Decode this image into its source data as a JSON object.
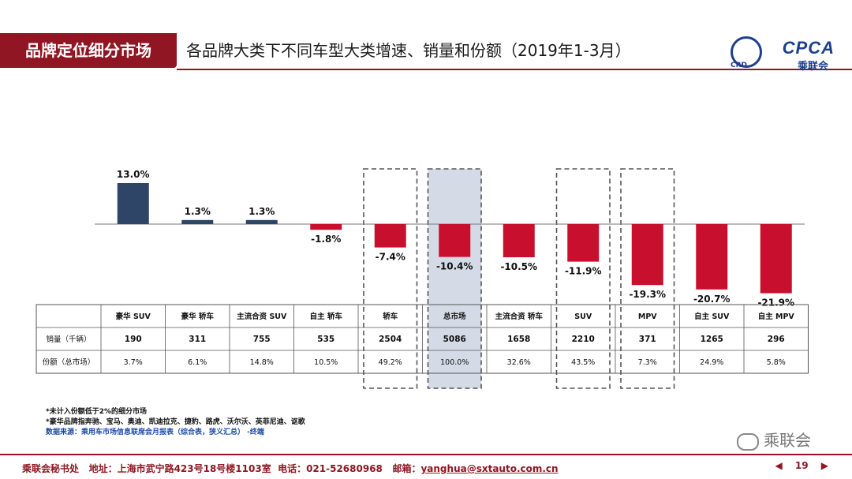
{
  "header": {
    "tag": "品牌定位细分市场",
    "title": "各品牌大类下不同车型大类增速、销量和份额（2019年1-3月）",
    "logo_text": "CPCA",
    "logo_subtext": "乘联会",
    "logo_small": "CRD"
  },
  "chart_data": {
    "type": "bar",
    "title": "各品牌大类下不同车型大类增速、销量和份额（2019年1-3月）",
    "categories": [
      "豪华 SUV",
      "豪华 轿车",
      "主流合资 SUV",
      "自主 轿车",
      "轿车",
      "总市场",
      "主流合资 轿车",
      "SUV",
      "MPV",
      "自主 SUV",
      "自主 MPV"
    ],
    "values": [
      13.0,
      1.3,
      1.3,
      -1.8,
      -7.4,
      -10.4,
      -10.5,
      -11.9,
      -19.3,
      -20.7,
      -21.9
    ],
    "value_labels": [
      "13.0%",
      "1.3%",
      "1.3%",
      "-1.8%",
      "-7.4%",
      "-10.4%",
      "-10.5%",
      "-11.9%",
      "-19.3%",
      "-20.7%",
      "-21.9%"
    ],
    "highlighted": [
      "轿车",
      "总市场",
      "SUV",
      "MPV"
    ],
    "colors": {
      "positive": "#2e4567",
      "negative": "#c8102e"
    },
    "ylim": [
      -23,
      14
    ],
    "table": {
      "row_labels": [
        "销量（千辆）",
        "份额（总市场）"
      ],
      "sales": [
        "190",
        "311",
        "755",
        "535",
        "2504",
        "5086",
        "1658",
        "2210",
        "371",
        "1265",
        "296"
      ],
      "shares": [
        "3.7%",
        "6.1%",
        "14.8%",
        "10.5%",
        "49.2%",
        "100.0%",
        "32.6%",
        "43.5%",
        "7.3%",
        "24.9%",
        "5.8%"
      ]
    }
  },
  "notes": {
    "line1": "*未计入份额低于2%的细分市场",
    "line2": "*豪华品牌指奔驰、宝马、奥迪、凯迪拉克、捷豹、路虎、沃尔沃、英菲尼迪、讴歌",
    "source": "数据来源：乘用车市场信息联席会月报表（综合表，狭义汇总）  -终端"
  },
  "watermark": "乘联会",
  "footer": {
    "org": "乘联会秘书处",
    "address": "地址：上海市武宁路423号18号楼1103室",
    "phone": "电话：021-52680968",
    "email_label": "邮箱：",
    "email": "yanghua@sxtauto.com.cn",
    "page": "19",
    "prev": "◀",
    "next": "▶"
  }
}
